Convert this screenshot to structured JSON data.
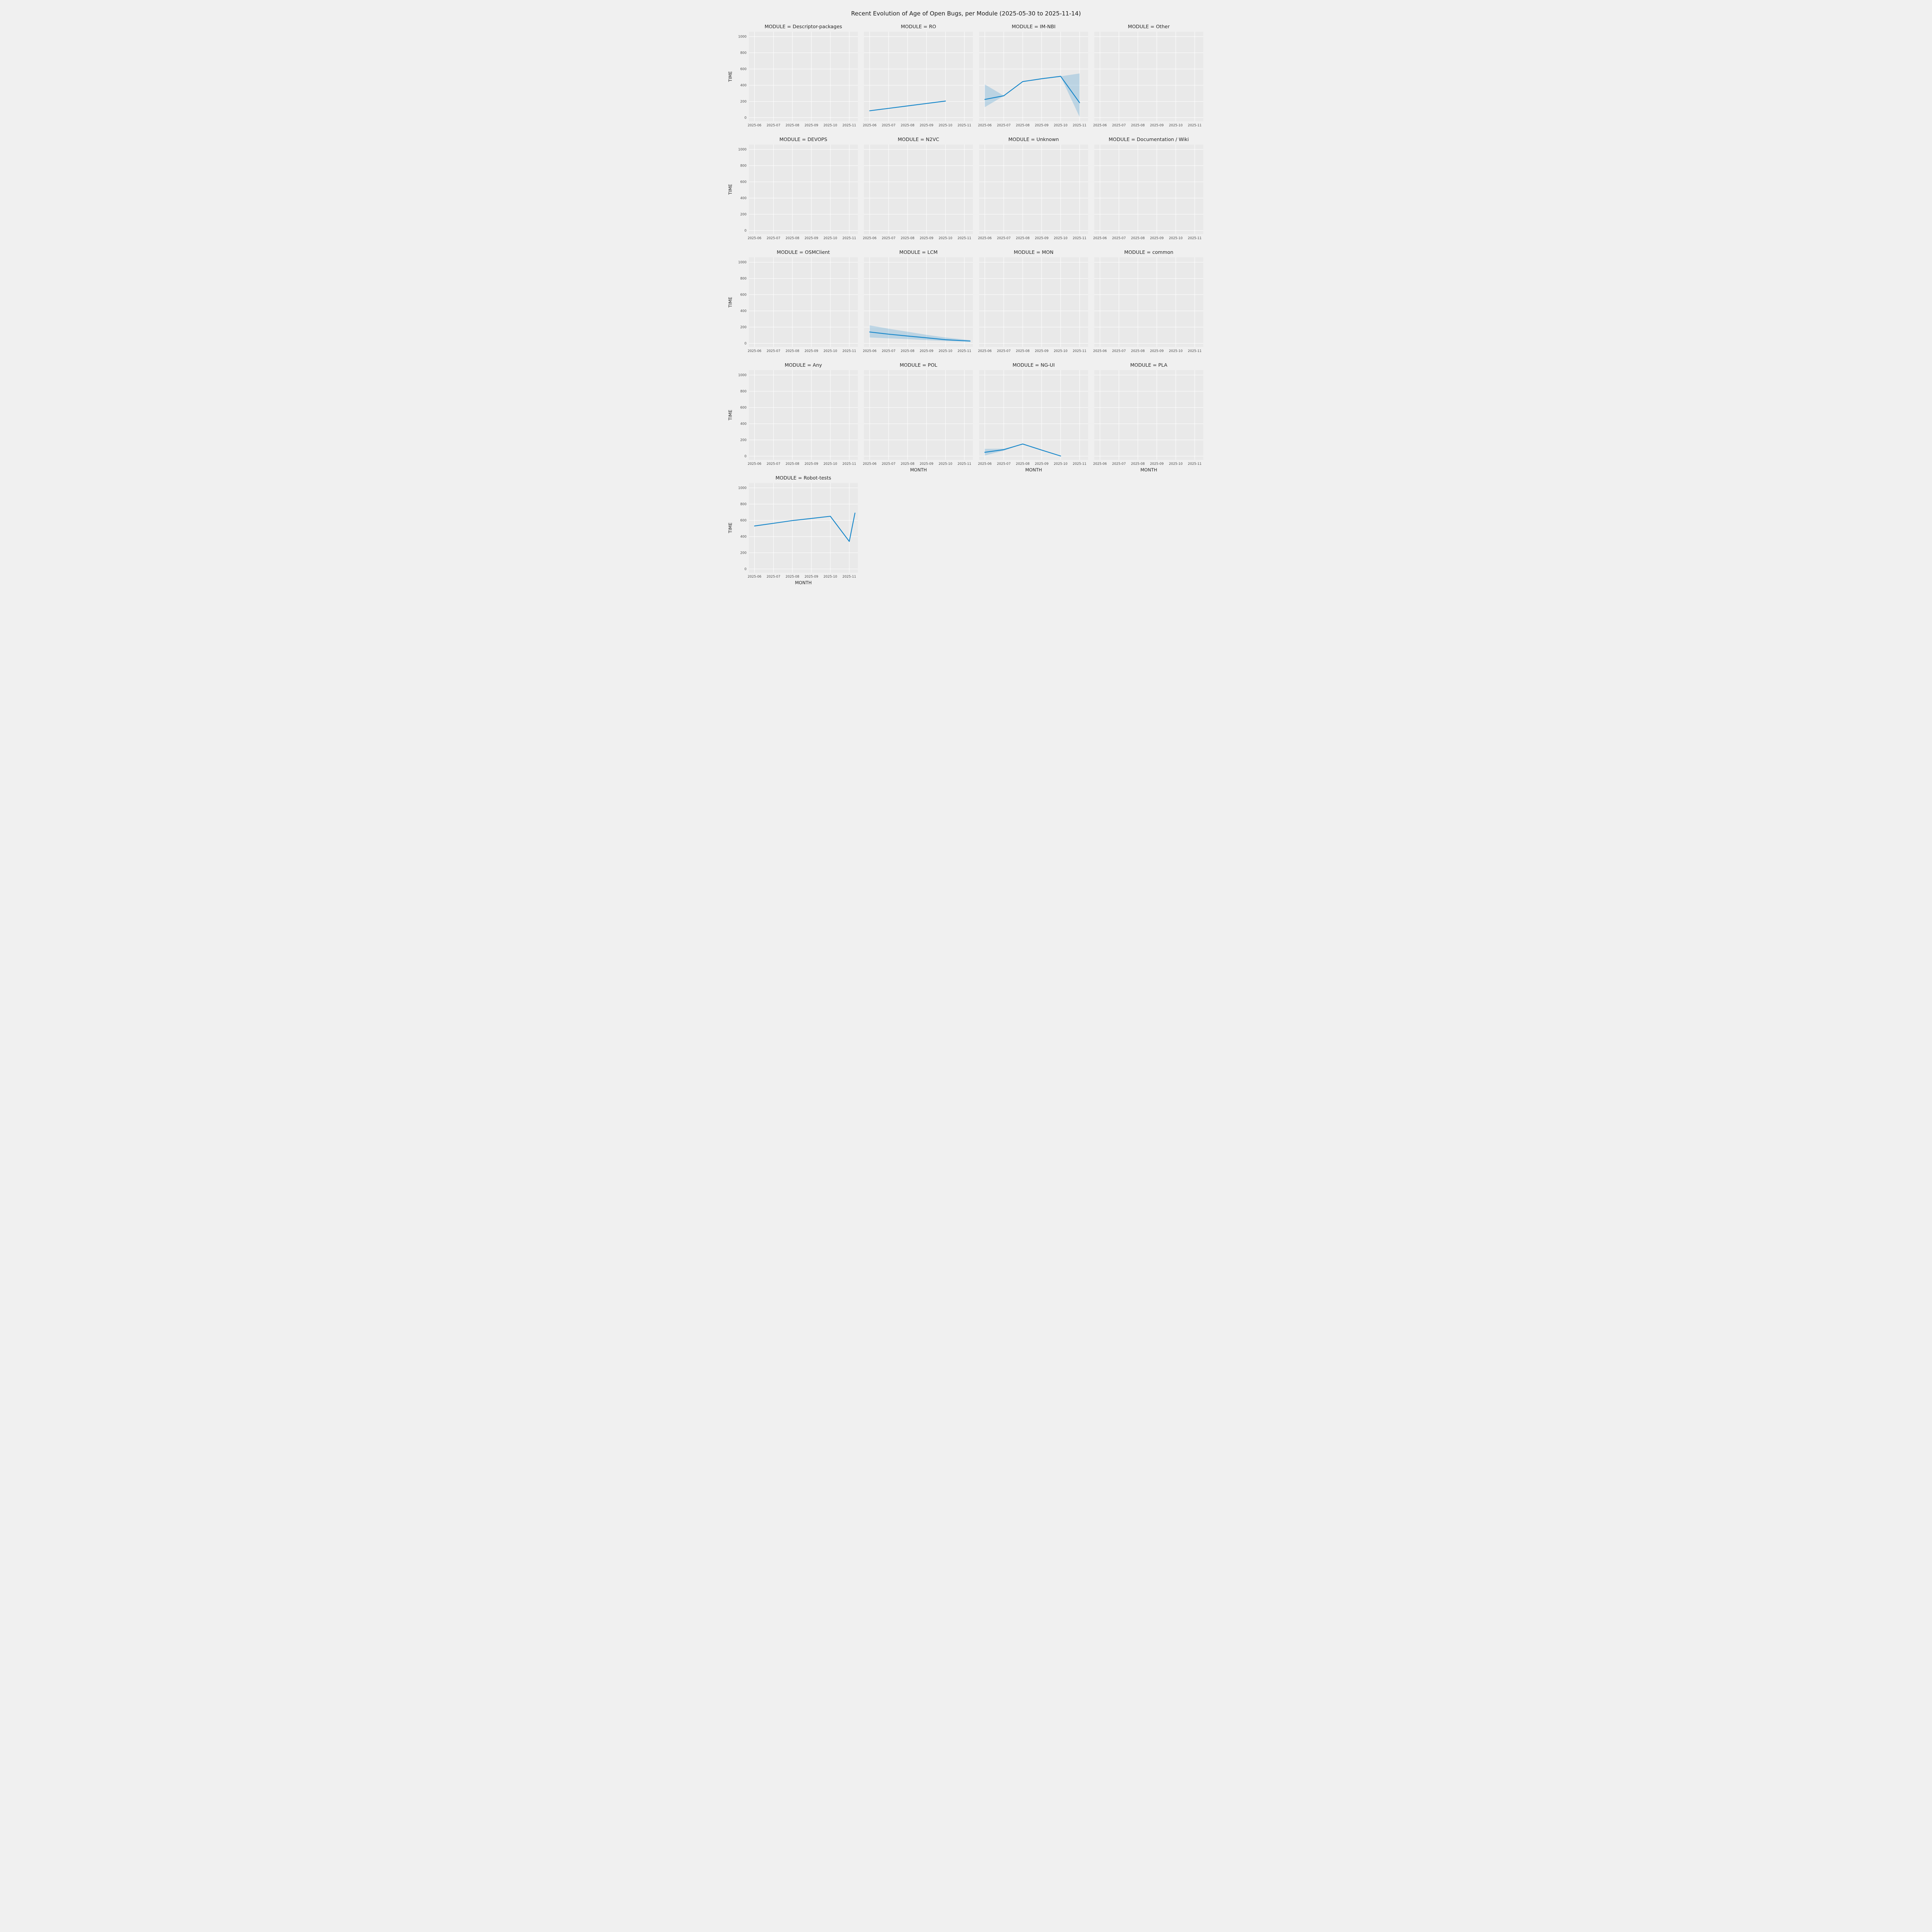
{
  "page": {
    "title": "Recent Evolution of Age of Open Bugs, per Module (2025-05-30 to 2025-11-14)"
  },
  "chart_data": {
    "type": "line",
    "title": "Recent Evolution of Age of Open Bugs, per Module (2025-05-30 to 2025-11-14)",
    "xlabel": "MONTH",
    "ylabel": "TIME",
    "facet_title_prefix": "MODULE = ",
    "x_tick_labels": [
      "2025-06",
      "2025-07",
      "2025-08",
      "2025-09",
      "2025-10",
      "2025-11"
    ],
    "y_ticks": [
      0,
      200,
      400,
      600,
      800,
      1000
    ],
    "ylim": [
      -45,
      1060
    ],
    "xlim": [
      -0.3,
      5.45
    ],
    "grid_on": true,
    "legend": "none",
    "line_color": "#1586ca",
    "band_color": "#1586ca",
    "band_opacity": 0.22,
    "figure_bg": "#f0f0f0",
    "axes_bg": "#e9e9e9",
    "grid_color": "#ffffff",
    "facets": [
      {
        "module": "Descriptor-packages",
        "x": [],
        "y": []
      },
      {
        "module": "RO",
        "x": [
          0,
          1,
          2,
          3,
          4
        ],
        "y": [
          85,
          115,
          145,
          175,
          205
        ]
      },
      {
        "module": "IM-NBI",
        "x": [
          0,
          1,
          2,
          3,
          4,
          5
        ],
        "y": [
          225,
          270,
          445,
          480,
          510,
          185
        ],
        "band": {
          "lo": [
            130,
            268,
            445,
            480,
            510,
            10
          ],
          "hi": [
            410,
            272,
            445,
            480,
            510,
            545
          ]
        }
      },
      {
        "module": "Other",
        "x": [],
        "y": []
      },
      {
        "module": "DEVOPS",
        "x": [],
        "y": []
      },
      {
        "module": "N2VC",
        "x": [],
        "y": []
      },
      {
        "module": "Unknown",
        "x": [],
        "y": []
      },
      {
        "module": "Documentation / Wiki",
        "x": [],
        "y": []
      },
      {
        "module": "OSMClient",
        "x": [],
        "y": []
      },
      {
        "module": "LCM",
        "x": [
          0,
          1,
          2,
          3,
          4,
          5.3
        ],
        "y": [
          140,
          113,
          90,
          68,
          45,
          28
        ],
        "band": {
          "lo": [
            72,
            62,
            52,
            40,
            28,
            20
          ],
          "hi": [
            222,
            180,
            143,
            105,
            72,
            40
          ]
        }
      },
      {
        "module": "MON",
        "x": [],
        "y": []
      },
      {
        "module": "common",
        "x": [],
        "y": []
      },
      {
        "module": "Any",
        "x": [],
        "y": []
      },
      {
        "module": "POL",
        "x": [],
        "y": []
      },
      {
        "module": "NG-UI",
        "x": [
          0,
          1,
          2,
          3,
          4
        ],
        "y": [
          48,
          80,
          150,
          75,
          2
        ],
        "band": {
          "lo": [
            8,
            68,
            150,
            75,
            2
          ],
          "hi": [
            90,
            92,
            150,
            75,
            2
          ]
        }
      },
      {
        "module": "PLA",
        "x": [],
        "y": []
      },
      {
        "module": "Robot-tests",
        "x": [
          0,
          1,
          2,
          3,
          4,
          5,
          5.3
        ],
        "y": [
          530,
          563,
          597,
          623,
          650,
          340,
          690
        ]
      }
    ],
    "xlabel_facet_indices": [
      13,
      14,
      15,
      16
    ],
    "layout": {
      "rows": 5,
      "cols": 4
    }
  }
}
